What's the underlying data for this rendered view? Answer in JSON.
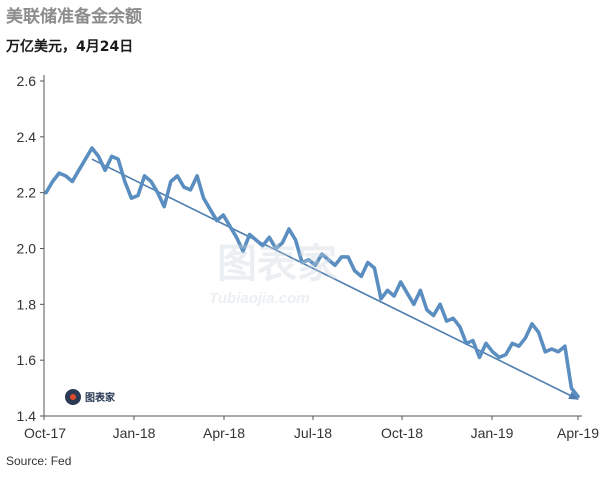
{
  "header": {
    "title": "美联储准备金余额",
    "subtitle": "万亿美元，4月24日"
  },
  "footer": {
    "source": "Source: Fed"
  },
  "watermark": {
    "logo_text": "图表家",
    "main": "图表家",
    "url": "Tubiaojia.com"
  },
  "colors": {
    "line": "#5a8ec0",
    "trend": "#4f7fb0",
    "axis": "#555555"
  },
  "chart_data": {
    "type": "line",
    "title": "美联储准备金余额",
    "ylabel": "万亿美元",
    "ylim": [
      1.4,
      2.6
    ],
    "yticks": [
      1.4,
      1.6,
      1.8,
      2.0,
      2.2,
      2.4,
      2.6
    ],
    "ytick_labels": [
      "1.4",
      "1.6",
      "1.8",
      "2.0",
      "2.2",
      "2.4",
      "2.6"
    ],
    "xticks": [
      "Oct-17",
      "Jan-18",
      "Apr-18",
      "Jul-18",
      "Oct-18",
      "Jan-19",
      "Apr-19"
    ],
    "grid": false,
    "series": [
      {
        "values": [
          2.2,
          2.24,
          2.27,
          2.26,
          2.24,
          2.28,
          2.32,
          2.36,
          2.33,
          2.28,
          2.33,
          2.32,
          2.24,
          2.18,
          2.19,
          2.26,
          2.24,
          2.2,
          2.15,
          2.24,
          2.26,
          2.22,
          2.21,
          2.26,
          2.18,
          2.14,
          2.1,
          2.12,
          2.08,
          2.04,
          1.99,
          2.05,
          2.03,
          2.01,
          2.04,
          2.0,
          2.02,
          2.07,
          2.03,
          1.95,
          1.96,
          1.94,
          1.98,
          1.96,
          1.94,
          1.97,
          1.97,
          1.92,
          1.9,
          1.95,
          1.93,
          1.82,
          1.85,
          1.83,
          1.88,
          1.84,
          1.8,
          1.85,
          1.78,
          1.76,
          1.8,
          1.74,
          1.75,
          1.72,
          1.66,
          1.67,
          1.61,
          1.66,
          1.63,
          1.61,
          1.62,
          1.66,
          1.65,
          1.68,
          1.73,
          1.7,
          1.63,
          1.64,
          1.63,
          1.65,
          1.5,
          1.47
        ]
      },
      {
        "name": "trend",
        "values": [
          2.32,
          1.46
        ]
      }
    ]
  }
}
